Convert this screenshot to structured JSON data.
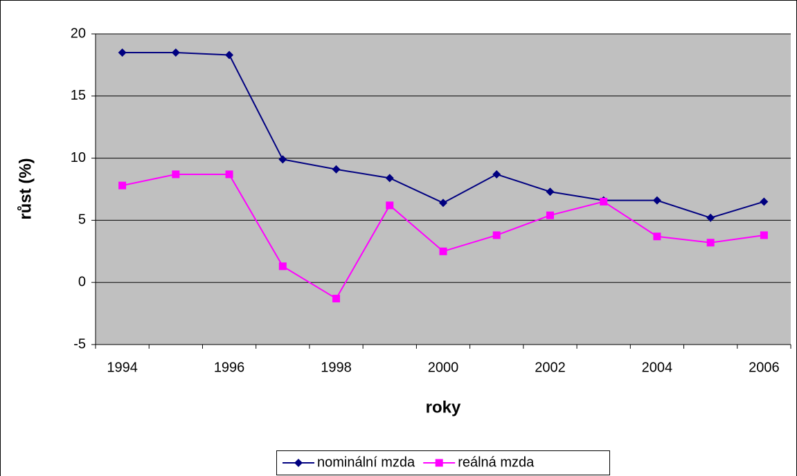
{
  "chart_data": {
    "type": "line",
    "x_label": "roky",
    "y_label": "růst (%)",
    "categories": [
      "1994",
      null,
      "1996",
      null,
      "1998",
      null,
      "2000",
      null,
      "2002",
      null,
      "2004",
      null,
      "2006"
    ],
    "series": [
      {
        "name": "nominální mzda",
        "color": "#000080",
        "marker": "diamond",
        "values": [
          18.5,
          18.5,
          18.3,
          9.9,
          9.1,
          8.4,
          6.4,
          8.7,
          7.3,
          6.6,
          6.6,
          5.2,
          6.5
        ]
      },
      {
        "name": "reálná mzda",
        "color": "#ff00ff",
        "marker": "square",
        "values": [
          7.8,
          8.7,
          8.7,
          1.3,
          -1.3,
          6.2,
          2.5,
          3.8,
          5.4,
          6.5,
          3.7,
          3.2,
          3.8
        ]
      }
    ],
    "ylim": [
      -5,
      20
    ],
    "yticks": [
      -5,
      0,
      5,
      10,
      15,
      20
    ],
    "grid": true,
    "plot_background": "#c0c0c0",
    "legend": "bottom"
  }
}
